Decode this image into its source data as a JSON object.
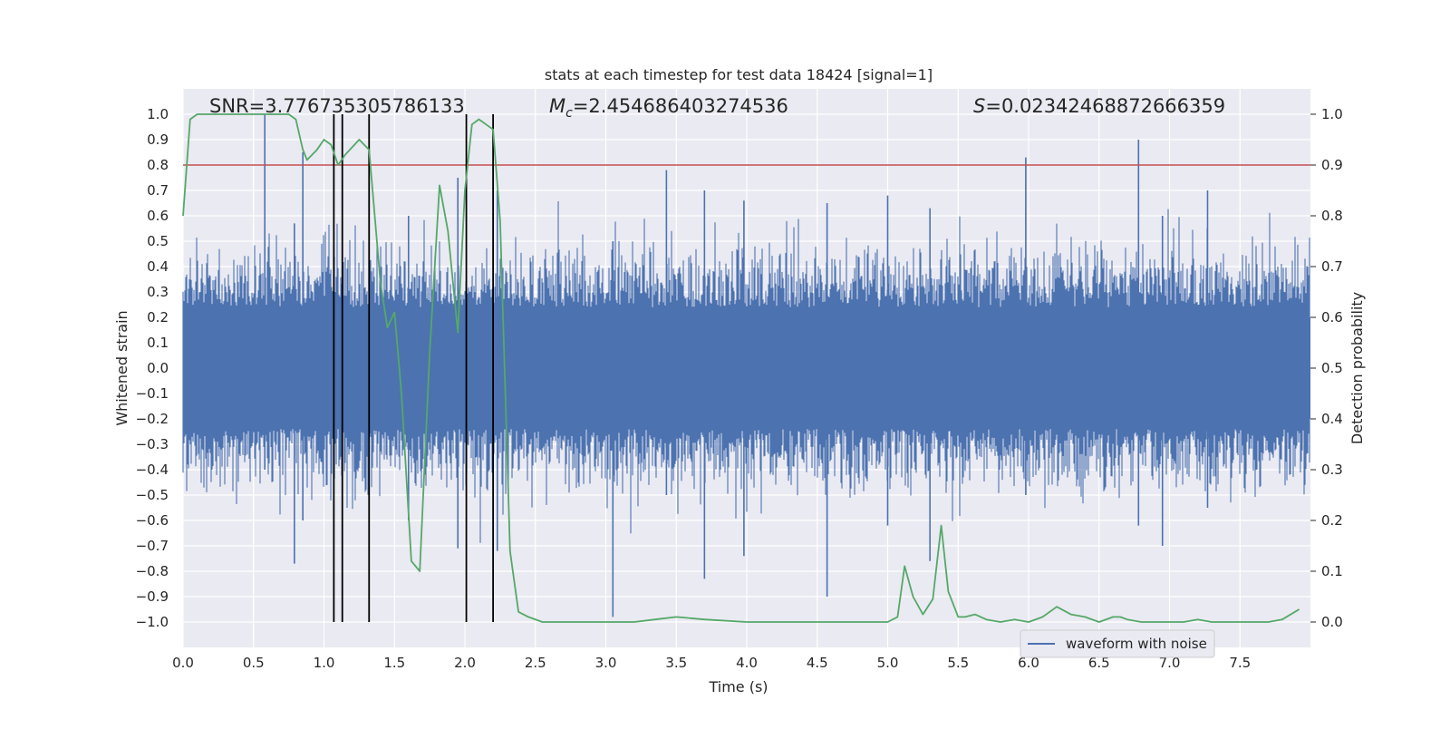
{
  "chart_data": {
    "type": "line",
    "title": "stats at each timestep for test data 18424 [signal=1]",
    "xlabel": "Time (s)",
    "ylabel": "Whitened strain",
    "ylabel_right": "Detection probability",
    "xlim": [
      0.0,
      8.0
    ],
    "ylim": [
      -1.1,
      1.1
    ],
    "ylim_right": [
      -0.05,
      1.05
    ],
    "x_ticks": [
      0.0,
      0.5,
      1.0,
      1.5,
      2.0,
      2.5,
      3.0,
      3.5,
      4.0,
      4.5,
      5.0,
      5.5,
      6.0,
      6.5,
      7.0,
      7.5
    ],
    "x_tick_labels": [
      "0.0",
      "0.5",
      "1.0",
      "1.5",
      "2.0",
      "2.5",
      "3.0",
      "3.5",
      "4.0",
      "4.5",
      "5.0",
      "5.5",
      "6.0",
      "6.5",
      "7.0",
      "7.5"
    ],
    "y_ticks": [
      1.0,
      0.9,
      0.8,
      0.7,
      0.6,
      0.5,
      0.4,
      0.3,
      0.2,
      0.1,
      0.0,
      -0.1,
      -0.2,
      -0.3,
      -0.4,
      -0.5,
      -0.6,
      -0.7,
      -0.8,
      -0.9,
      -1.0
    ],
    "y_tick_labels": [
      "1.0",
      "0.9",
      "0.8",
      "0.7",
      "0.6",
      "0.5",
      "0.4",
      "0.3",
      "0.2",
      "0.1",
      "0.0",
      "−0.1",
      "−0.2",
      "−0.3",
      "−0.4",
      "−0.5",
      "−0.6",
      "−0.7",
      "−0.8",
      "−0.9",
      "−1.0"
    ],
    "y_right_ticks": [
      1.0,
      0.9,
      0.8,
      0.7,
      0.6,
      0.5,
      0.4,
      0.3,
      0.2,
      0.1,
      0.0
    ],
    "y_right_tick_labels": [
      "1.0",
      "0.9",
      "0.8",
      "0.7",
      "0.6",
      "0.5",
      "0.4",
      "0.3",
      "0.2",
      "0.1",
      "0.0"
    ],
    "annotations": {
      "snr": "SNR=3.776735305786133",
      "mc_symbol": "M",
      "mc_sub": "c",
      "mc_value": "=2.454686403274536",
      "s_symbol": "S",
      "s_value": "=0.02342468872666359"
    },
    "threshold": {
      "value": 0.8,
      "color": "#c44e52"
    },
    "vlines": {
      "x": [
        1.07,
        1.13,
        1.32,
        2.01,
        2.2
      ],
      "ymin": -1.0,
      "ymax": 1.0,
      "color": "#000000"
    },
    "waveform": {
      "name": "waveform with noise",
      "color": "#4c72b0",
      "dense_band": 0.2,
      "spikes": [
        {
          "t": 0.58,
          "top": 1.0,
          "bot": -0.4
        },
        {
          "t": 0.85,
          "top": 0.85,
          "bot": -0.6
        },
        {
          "t": 0.79,
          "top": 0.57,
          "bot": -0.77
        },
        {
          "t": 1.6,
          "top": 0.6,
          "bot": -0.6
        },
        {
          "t": 1.95,
          "top": 0.75,
          "bot": -0.71
        },
        {
          "t": 2.23,
          "top": 0.7,
          "bot": -0.72
        },
        {
          "t": 3.05,
          "top": 0.5,
          "bot": -0.98
        },
        {
          "t": 3.43,
          "top": 0.78,
          "bot": -0.5
        },
        {
          "t": 3.7,
          "top": 0.7,
          "bot": -0.83
        },
        {
          "t": 3.98,
          "top": 0.66,
          "bot": -0.74
        },
        {
          "t": 4.57,
          "top": 0.65,
          "bot": -0.9
        },
        {
          "t": 5.0,
          "top": 0.68,
          "bot": -0.62
        },
        {
          "t": 5.3,
          "top": 0.63,
          "bot": -0.76
        },
        {
          "t": 5.98,
          "top": 0.83,
          "bot": -0.5
        },
        {
          "t": 6.78,
          "top": 0.9,
          "bot": -0.62
        },
        {
          "t": 6.95,
          "top": 0.6,
          "bot": -0.7
        },
        {
          "t": 7.27,
          "top": 0.7,
          "bot": -0.55
        }
      ]
    },
    "probability": {
      "color": "#55a868",
      "x": [
        0.0,
        0.05,
        0.1,
        0.15,
        0.25,
        0.35,
        0.45,
        0.55,
        0.65,
        0.7,
        0.75,
        0.8,
        0.85,
        0.88,
        0.95,
        1.0,
        1.05,
        1.1,
        1.15,
        1.25,
        1.32,
        1.4,
        1.45,
        1.5,
        1.55,
        1.62,
        1.68,
        1.75,
        1.82,
        1.88,
        1.95,
        2.0,
        2.05,
        2.1,
        2.15,
        2.2,
        2.25,
        2.32,
        2.38,
        2.45,
        2.55,
        2.7,
        3.0,
        3.2,
        3.35,
        3.5,
        3.7,
        4.0,
        4.3,
        4.6,
        4.9,
        5.0,
        5.07,
        5.12,
        5.18,
        5.25,
        5.32,
        5.38,
        5.43,
        5.5,
        5.55,
        5.62,
        5.7,
        5.8,
        5.9,
        6.0,
        6.1,
        6.2,
        6.3,
        6.4,
        6.5,
        6.6,
        6.65,
        6.7,
        6.8,
        6.9,
        7.0,
        7.1,
        7.2,
        7.3,
        7.4,
        7.5,
        7.6,
        7.7,
        7.8,
        7.92
      ],
      "y": [
        0.8,
        0.99,
        1.0,
        1.0,
        1.0,
        1.0,
        1.0,
        1.0,
        1.0,
        1.0,
        1.0,
        0.99,
        0.93,
        0.91,
        0.93,
        0.95,
        0.94,
        0.9,
        0.92,
        0.95,
        0.93,
        0.67,
        0.58,
        0.61,
        0.45,
        0.12,
        0.1,
        0.53,
        0.86,
        0.77,
        0.57,
        0.85,
        0.98,
        0.99,
        0.98,
        0.97,
        0.79,
        0.14,
        0.02,
        0.01,
        0.0,
        0.0,
        0.0,
        0.0,
        0.005,
        0.01,
        0.005,
        0.0,
        0.0,
        0.0,
        0.0,
        0.0,
        0.01,
        0.11,
        0.05,
        0.015,
        0.045,
        0.19,
        0.06,
        0.01,
        0.01,
        0.015,
        0.005,
        0.0,
        0.005,
        0.0,
        0.01,
        0.03,
        0.015,
        0.01,
        0.0,
        0.01,
        0.01,
        0.005,
        0.0,
        0.0,
        0.0,
        0.0,
        0.005,
        0.0,
        0.0,
        0.0,
        0.0,
        0.0,
        0.005,
        0.025
      ]
    },
    "legend": {
      "entries": [
        "waveform with noise"
      ],
      "placement": "bottom-right"
    },
    "grid": true,
    "background": "#eaeaf2"
  }
}
